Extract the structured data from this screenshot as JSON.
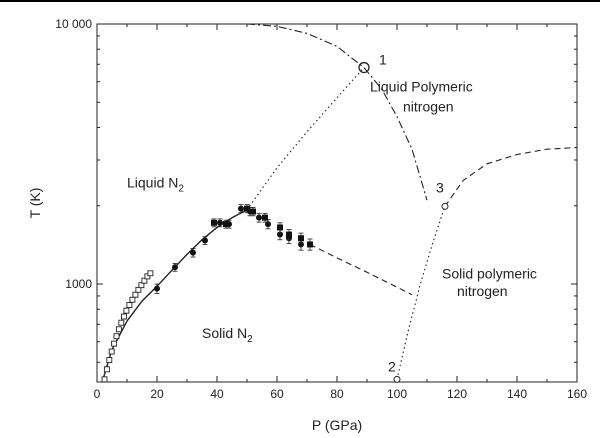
{
  "chart_data": {
    "type": "scatter",
    "xlabel": "P (GPa)",
    "ylabel": "T (K)",
    "xlim": [
      0,
      160
    ],
    "ylim": [
      420,
      10000
    ],
    "y_scale": "log",
    "x_ticks": [
      0,
      20,
      40,
      60,
      80,
      100,
      120,
      140,
      160
    ],
    "x_tick_labels": [
      "0",
      "20",
      "40",
      "60",
      "80",
      "100",
      "120",
      "140",
      "160"
    ],
    "y_ticks": [
      1000,
      10000
    ],
    "y_tick_labels": [
      "1000",
      "10 000"
    ],
    "grid": false,
    "regions": [
      {
        "text": "Liquid N",
        "sub": "2",
        "x": 10,
        "y": 2350
      },
      {
        "text": "Liquid Polymeric",
        "x": 91,
        "y": 5500
      },
      {
        "text": "nitrogen",
        "x": 102,
        "y": 4600
      },
      {
        "text": "Solid N",
        "sub": "2",
        "x": 35,
        "y": 620
      },
      {
        "text": "Solid polymeric",
        "x": 115,
        "y": 1050
      },
      {
        "text": "nitrogen",
        "x": 120,
        "y": 900
      }
    ],
    "point_labels": [
      {
        "text": "1",
        "x": 94,
        "y": 7000
      },
      {
        "text": "2",
        "x": 97,
        "y": 460
      },
      {
        "text": "3",
        "x": 113,
        "y": 2250
      }
    ],
    "series": [
      {
        "marker": "filled-circle",
        "x": [
          20,
          26,
          32,
          36,
          41,
          44,
          48,
          51,
          54,
          57,
          61,
          64,
          68
        ],
        "y": [
          960,
          1160,
          1320,
          1470,
          1720,
          1700,
          1950,
          1900,
          1800,
          1700,
          1550,
          1500,
          1420
        ],
        "err": [
          40,
          40,
          50,
          50,
          60,
          60,
          70,
          70,
          70,
          70,
          70,
          70,
          70
        ]
      },
      {
        "marker": "filled-square",
        "x": [
          39,
          43,
          50,
          52,
          56,
          61,
          64,
          68,
          71
        ],
        "y": [
          1720,
          1700,
          1950,
          1900,
          1800,
          1650,
          1550,
          1500,
          1420
        ],
        "err": [
          60,
          60,
          70,
          70,
          70,
          70,
          70,
          70,
          70
        ]
      },
      {
        "marker": "open-square",
        "x": [
          2.5,
          3.3,
          4.1,
          4.9,
          5.7,
          6.5,
          7.3,
          8.1,
          9.0,
          9.8,
          10.8,
          11.8,
          12.8,
          13.8,
          14.8,
          15.8,
          16.8,
          17.8
        ],
        "y": [
          430,
          470,
          510,
          550,
          590,
          630,
          670,
          710,
          750,
          790,
          830,
          870,
          910,
          950,
          990,
          1030,
          1070,
          1100
        ]
      },
      {
        "marker": "open-circle",
        "x": [
          100,
          116
        ],
        "y": [
          430,
          1990
        ]
      }
    ],
    "curves": [
      {
        "style": "solid",
        "x": [
          2,
          5,
          10,
          15,
          20,
          25,
          30,
          35,
          40,
          45,
          50
        ],
        "y": [
          430,
          560,
          720,
          860,
          980,
          1130,
          1300,
          1480,
          1650,
          1800,
          1930
        ]
      },
      {
        "style": "dotted",
        "x": [
          50,
          60,
          70,
          80,
          89
        ],
        "y": [
          1930,
          2800,
          3850,
          5200,
          6800
        ]
      },
      {
        "style": "dashed",
        "x": [
          71,
          80,
          90,
          105
        ],
        "y": [
          1420,
          1260,
          1110,
          910
        ]
      },
      {
        "style": "dashdot",
        "x": [
          50,
          60,
          70,
          80,
          89,
          95,
          100,
          105,
          110
        ],
        "y": [
          10000,
          9800,
          9200,
          8200,
          6800,
          5600,
          4400,
          3300,
          2100
        ]
      },
      {
        "style": "dotted",
        "x": [
          100,
          104,
          108,
          112,
          116
        ],
        "y": [
          430,
          680,
          1020,
          1450,
          1990
        ]
      },
      {
        "style": "dashed",
        "x": [
          116,
          122,
          130,
          140,
          150,
          160
        ],
        "y": [
          1990,
          2500,
          2900,
          3150,
          3300,
          3350
        ]
      },
      {
        "style": "open-circle-large",
        "x": [
          89
        ],
        "y": [
          6800
        ]
      }
    ]
  }
}
